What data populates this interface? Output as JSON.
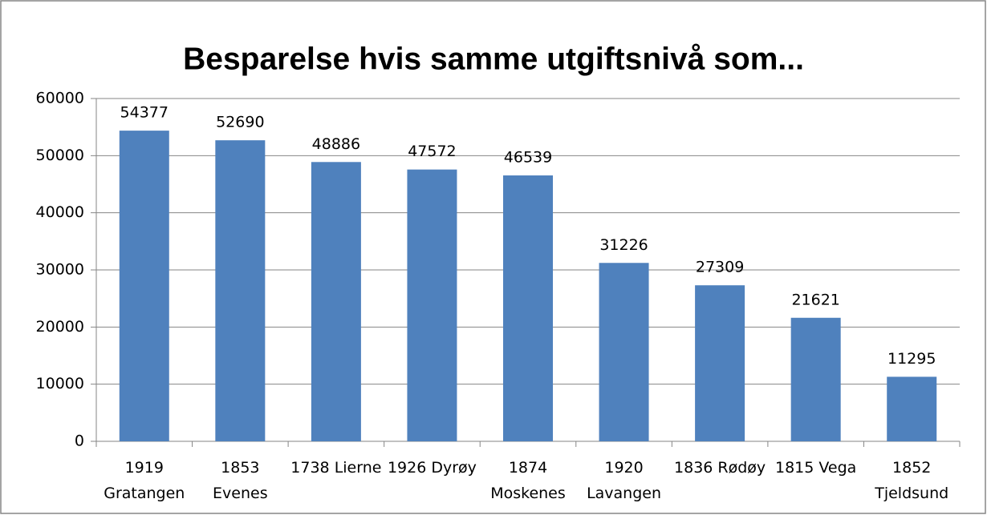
{
  "chart_data": {
    "type": "bar",
    "title": "Besparelse hvis samme utgiftsnivå som...",
    "categories": [
      "1919 Gratangen",
      "1853 Evenes",
      "1738 Lierne",
      "1926 Dyrøy",
      "1874 Moskenes",
      "1920 Lavangen",
      "1836 Rødøy",
      "1815 Vega",
      "1852 Tjeldsund"
    ],
    "values": [
      54377,
      52690,
      48886,
      47572,
      46539,
      31226,
      27309,
      21621,
      11295
    ],
    "color": "#4f81bd",
    "ylim": [
      0,
      60000
    ],
    "yticks": [
      0,
      10000,
      20000,
      30000,
      40000,
      50000,
      60000
    ],
    "grid": true
  }
}
